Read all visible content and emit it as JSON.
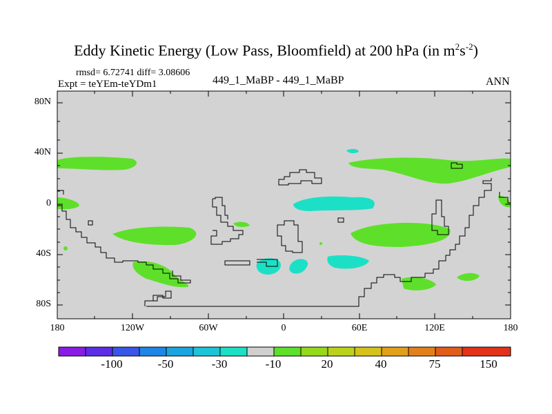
{
  "title": {
    "main": "Eddy Kinetic Energy (Low Pass, Bloomfield) at 200 hPa (in m",
    "sup1": "2",
    "mid": "s",
    "sup2": "-2",
    "end": ")"
  },
  "stats": "rmsd= 6.72741 diff= 3.08606",
  "expt": "Expt = teYEm-teYDm1",
  "case": "449_1_MaBP - 449_1_MaBP",
  "season": "ANN",
  "y_ticks": [
    "80N",
    "40N",
    "0",
    "40S",
    "80S"
  ],
  "x_ticks": [
    "180",
    "120W",
    "60W",
    "0",
    "60E",
    "120E",
    "180"
  ],
  "colorbar": {
    "colors": [
      "#8a1ce6",
      "#5c2ee6",
      "#3a56e6",
      "#1e86e6",
      "#1aa4e0",
      "#1cc4d6",
      "#1ce0c6",
      "#cfcfcf",
      "#5ee02a",
      "#96d81a",
      "#bcd21a",
      "#d6c21a",
      "#e2a01a",
      "#e2801a",
      "#e25c1a",
      "#e2321a"
    ],
    "labels": [
      "-100",
      "-50",
      "-30",
      "-10",
      "20",
      "40",
      "75",
      "150"
    ]
  },
  "map_colors": {
    "positive": "#5ee02a",
    "negative": "#1ce0c6",
    "background": "#d3d3d3"
  }
}
